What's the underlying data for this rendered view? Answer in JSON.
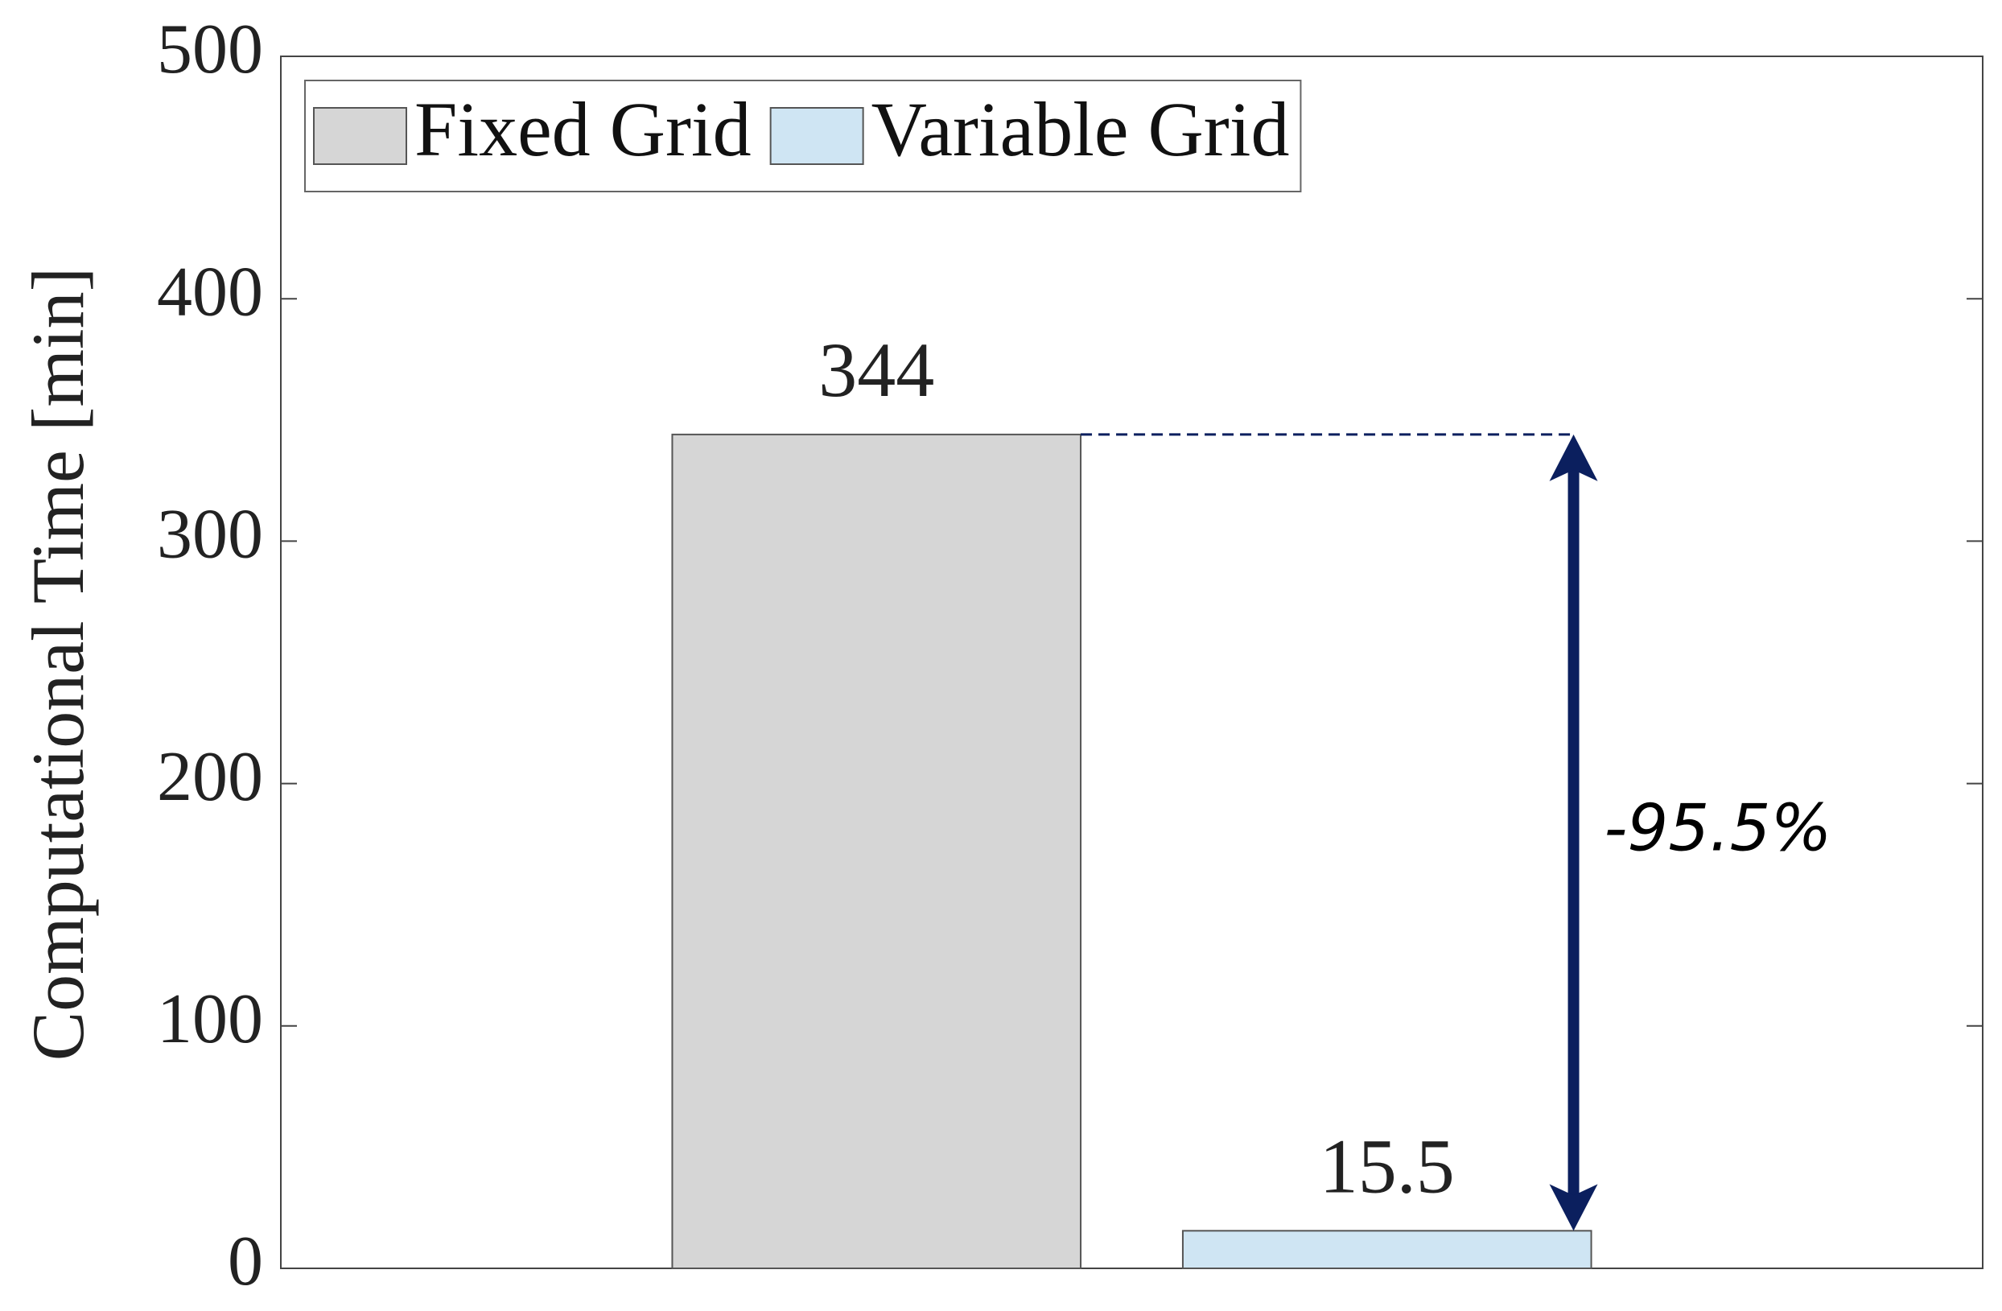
{
  "chart_data": {
    "type": "bar",
    "ylabel": "Computational Time [min]",
    "categories": [
      null
    ],
    "series": [
      {
        "name": "Fixed Grid",
        "color": "#d6d6d6",
        "values": [
          344
        ]
      },
      {
        "name": "Variable Grid",
        "color": "#cfe5f3",
        "values": [
          15.5
        ]
      }
    ],
    "ylim": [
      0,
      500
    ],
    "yticks": [
      0,
      100,
      200,
      300,
      400,
      500
    ],
    "grid": false,
    "legend": "upper left",
    "annotation": "-95.5%"
  }
}
